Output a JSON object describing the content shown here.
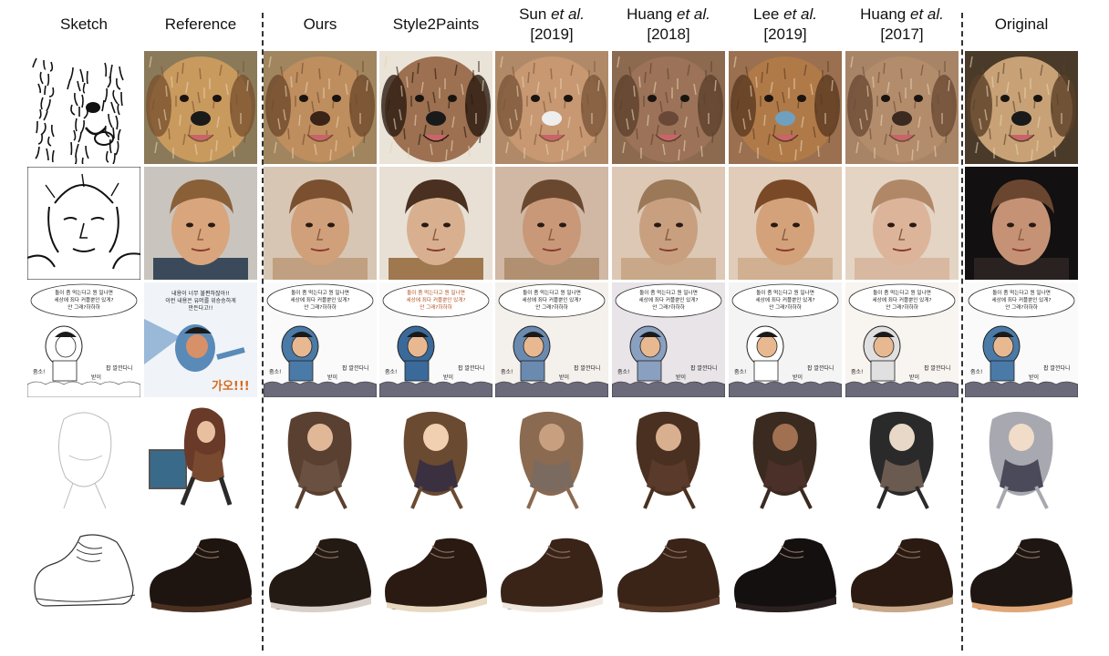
{
  "columns": [
    {
      "id": "sketch",
      "label": "Sketch",
      "sub": ""
    },
    {
      "id": "reference",
      "label": "Reference",
      "sub": ""
    },
    {
      "id": "ours",
      "label": "Ours",
      "sub": ""
    },
    {
      "id": "style2paints",
      "label": "Style2Paints",
      "sub": ""
    },
    {
      "id": "sun2019",
      "label": "Sun",
      "etal": "et al.",
      "sub": "[2019]"
    },
    {
      "id": "huang2018",
      "label": "Huang",
      "etal": "et al.",
      "sub": "[2018]"
    },
    {
      "id": "lee2019",
      "label": "Lee",
      "etal": "et al.",
      "sub": "[2019]"
    },
    {
      "id": "huang2017",
      "label": "Huang",
      "etal": "et al.",
      "sub": "[2017]"
    },
    {
      "id": "original",
      "label": "Original",
      "sub": ""
    }
  ],
  "rows": [
    "dog",
    "face",
    "comic",
    "anime",
    "shoe"
  ],
  "comic_text": {
    "bubble_line1": "돌이 좀 먹는다고 뭔 일나면",
    "bubble_line2": "세상에 죄다 커플뿐인 있게?",
    "bubble_line3": "안 그래?하하하",
    "ref_line1": "내용이 너무 불편하잖아!!",
    "ref_line2": "이런 내용은 유머를 위승승하게",
    "ref_line3": "만든다고!!",
    "ref_shout": "가오!!!",
    "sfx_left": "줌소!",
    "sfx_right": "팝 깔깐다니",
    "sfx_mid": "받이"
  },
  "colors": {
    "divider": "#333333",
    "dog_fur": "#b8865a",
    "face_skin": "#d9a77e",
    "shoe_dark": "#2a1d16"
  }
}
